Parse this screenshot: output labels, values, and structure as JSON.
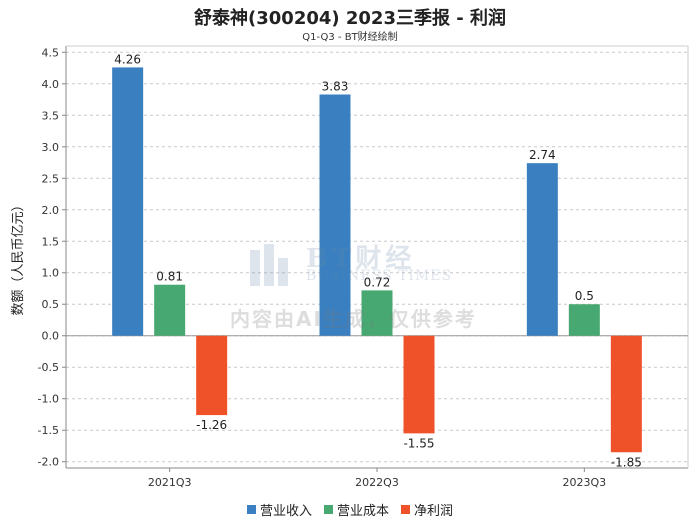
{
  "title": "舒泰神(300204) 2023三季报 - 利润",
  "subtitle": "Q1-Q3 - BT财经绘制",
  "watermark": {
    "logo_text": "BT财经",
    "logo_sub": "BUSINESS TIMES",
    "ai_notice": "内容由AI生成，仅供参考"
  },
  "chart_data": {
    "type": "bar",
    "categories": [
      "2021Q3",
      "2022Q3",
      "2023Q3"
    ],
    "series": [
      {
        "name": "营业收入",
        "color": "#3a80c0",
        "values": [
          4.26,
          3.83,
          2.74
        ]
      },
      {
        "name": "营业成本",
        "color": "#47a872",
        "values": [
          0.81,
          0.72,
          0.5
        ]
      },
      {
        "name": "净利润",
        "color": "#ef5228",
        "values": [
          -1.26,
          -1.55,
          -1.85
        ]
      }
    ],
    "ylabel": "数额（人民币亿元）",
    "xlabel": "",
    "ylim": [
      -2.1,
      4.6
    ],
    "yticks": [
      -2.0,
      -1.5,
      -1.0,
      -0.5,
      0.0,
      0.5,
      1.0,
      1.5,
      2.0,
      2.5,
      3.0,
      3.5,
      4.0,
      4.5
    ],
    "ytick_labels": [
      "-2.0",
      "-1.5",
      "-1.0",
      "-0.5",
      "0.0",
      "0.5",
      "1.0",
      "1.5",
      "2.0",
      "2.5",
      "3.0",
      "3.5",
      "4.0",
      "4.5"
    ],
    "data_labels": [
      [
        "4.26",
        "3.83",
        "2.74"
      ],
      [
        "0.81",
        "0.72",
        "0.5"
      ],
      [
        "-1.26",
        "-1.55",
        "-1.85"
      ]
    ],
    "grid": true,
    "legend": "bottom"
  }
}
